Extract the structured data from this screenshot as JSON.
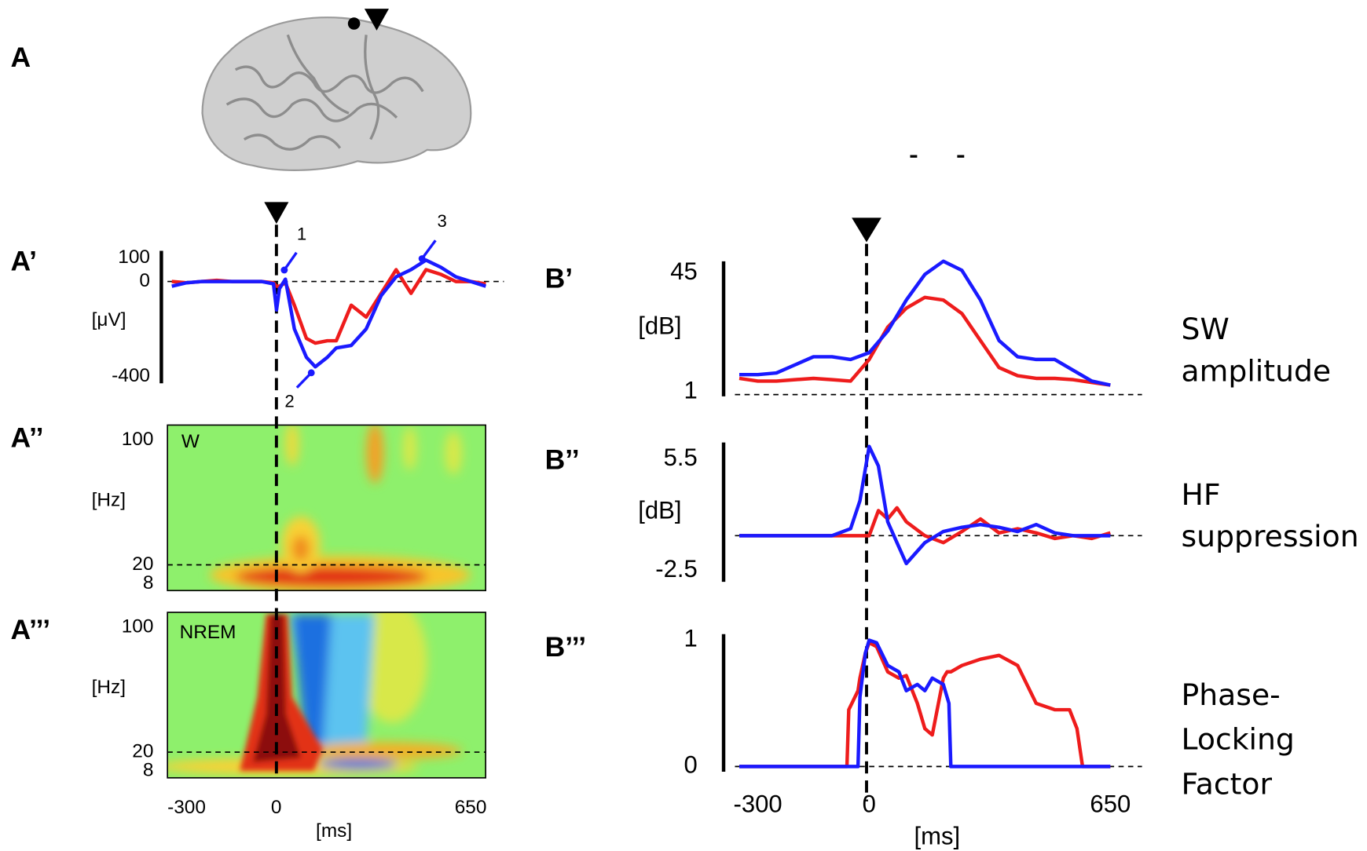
{
  "brain_panel": "A",
  "chart_data": [
    {
      "type": "line",
      "panel": "A’",
      "ylabel": "[μV]",
      "ylim": [
        -400,
        100
      ],
      "yticks": [
        100,
        0,
        -400
      ],
      "xlim": [
        -350,
        717
      ],
      "x": [
        -350,
        -300,
        -250,
        -200,
        -150,
        -100,
        -50,
        -10,
        0,
        10,
        30,
        60,
        100,
        130,
        170,
        200,
        250,
        300,
        350,
        400,
        450,
        500,
        550,
        600,
        650,
        700
      ],
      "series": [
        {
          "color": "#ee1c1c",
          "values": [
            0,
            -5,
            0,
            5,
            0,
            0,
            0,
            -5,
            -20,
            -20,
            -5,
            -100,
            -240,
            -260,
            -250,
            -250,
            -100,
            -150,
            -50,
            50,
            -50,
            50,
            30,
            0,
            0,
            -10
          ]
        },
        {
          "color": "#1a1aff",
          "values": [
            -20,
            -5,
            0,
            0,
            0,
            0,
            0,
            -10,
            -120,
            -30,
            10,
            -200,
            -320,
            -360,
            -320,
            -280,
            -270,
            -200,
            -60,
            20,
            50,
            90,
            60,
            20,
            0,
            -20
          ]
        }
      ],
      "annotations": [
        "1",
        "2",
        "3"
      ]
    },
    {
      "type": "heatmap",
      "panel": "A’’",
      "label": "W",
      "ylabel": "[Hz]",
      "ylim": [
        8,
        100
      ],
      "yticks": [
        100,
        20,
        8
      ],
      "xlim": [
        -364,
        700
      ]
    },
    {
      "type": "heatmap",
      "panel": "A’’’",
      "label": "NREM",
      "ylabel": "[Hz]",
      "ylim": [
        8,
        100
      ],
      "yticks": [
        100,
        20,
        8
      ],
      "xlim": [
        -364,
        700
      ],
      "xticks": [
        -300,
        0,
        650
      ],
      "xlabel": "[ms]"
    },
    {
      "type": "line",
      "panel": "B’",
      "ylabel": "[dB]",
      "ylim": [
        0,
        50
      ],
      "yticks": [
        45,
        1
      ],
      "xlim": [
        -350,
        700
      ],
      "x": [
        -350,
        -300,
        -250,
        -200,
        -150,
        -100,
        -50,
        0,
        50,
        100,
        150,
        200,
        250,
        300,
        350,
        400,
        450,
        500,
        550,
        600,
        650
      ],
      "series": [
        {
          "color": "#ee1c1c",
          "values": [
            6,
            5,
            5,
            5.5,
            6,
            5.5,
            5,
            13,
            25,
            32,
            36,
            35,
            30,
            20,
            10,
            7,
            6,
            6,
            5.5,
            4.5,
            3.5
          ]
        },
        {
          "color": "#1a1aff",
          "values": [
            7.4,
            7.4,
            8,
            11,
            14,
            14,
            13,
            15.5,
            23.5,
            35,
            44.5,
            49.4,
            46,
            35,
            20,
            14,
            13,
            13,
            9,
            5,
            3.5
          ]
        }
      ],
      "side_label": [
        "SW",
        "amplitude"
      ]
    },
    {
      "type": "line",
      "panel": "B’’",
      "ylabel": "[dB]",
      "ylim": [
        -3,
        7
      ],
      "yticks": [
        5.5,
        -2.5
      ],
      "xlim": [
        -350,
        700
      ],
      "x": [
        -350,
        -300,
        -250,
        -200,
        -150,
        -100,
        -50,
        -25,
        0,
        25,
        50,
        75,
        100,
        150,
        200,
        250,
        300,
        350,
        400,
        450,
        500,
        550,
        600,
        650
      ],
      "series": [
        {
          "color": "#ee1c1c",
          "values": [
            0,
            0,
            0,
            0,
            0,
            0,
            0,
            0,
            0,
            1.8,
            1.2,
            2,
            1,
            0,
            -0.5,
            0.3,
            1.2,
            0.2,
            0.5,
            0.2,
            -0.2,
            0,
            -0.2,
            0.2
          ]
        },
        {
          "color": "#1a1aff",
          "values": [
            0,
            0,
            0,
            0,
            0,
            0,
            0.5,
            2.5,
            6.4,
            5,
            1,
            -0.5,
            -2,
            -0.5,
            0.3,
            0.6,
            0.8,
            0.6,
            0.3,
            0.8,
            0.2,
            0,
            0,
            0
          ]
        }
      ],
      "side_label": [
        "HF",
        "suppression"
      ]
    },
    {
      "type": "line",
      "panel": "B’’’",
      "ylim": [
        0,
        1
      ],
      "yticks": [
        1,
        0
      ],
      "xlim": [
        -350,
        700
      ],
      "xticks": [
        -300,
        0,
        650
      ],
      "xlabel": "[ms]",
      "x": [
        -350,
        -60,
        -55,
        -30,
        -25,
        -10,
        0,
        20,
        50,
        80,
        100,
        130,
        150,
        170,
        200,
        210,
        215,
        220,
        250,
        300,
        350,
        400,
        450,
        500,
        540,
        560,
        575,
        650
      ],
      "series": [
        {
          "color": "#ee1c1c",
          "values": [
            0,
            0,
            0.45,
            0.6,
            0.7,
            0.9,
            0.98,
            0.95,
            0.75,
            0.7,
            0.72,
            0.5,
            0.3,
            0.25,
            0.7,
            0.75,
            0.75,
            0.75,
            0.8,
            0.85,
            0.88,
            0.8,
            0.5,
            0.45,
            0.45,
            0.3,
            0,
            0
          ]
        },
        {
          "color": "#1a1aff",
          "values": [
            0,
            0,
            0,
            0,
            0.55,
            0.9,
            1,
            0.98,
            0.8,
            0.75,
            0.6,
            0.65,
            0.6,
            0.7,
            0.65,
            0.55,
            0.5,
            0,
            0,
            0,
            0,
            0,
            0,
            0,
            0,
            0,
            0,
            0
          ]
        }
      ],
      "side_label": [
        "Phase-",
        "Locking",
        "Factor"
      ]
    }
  ]
}
